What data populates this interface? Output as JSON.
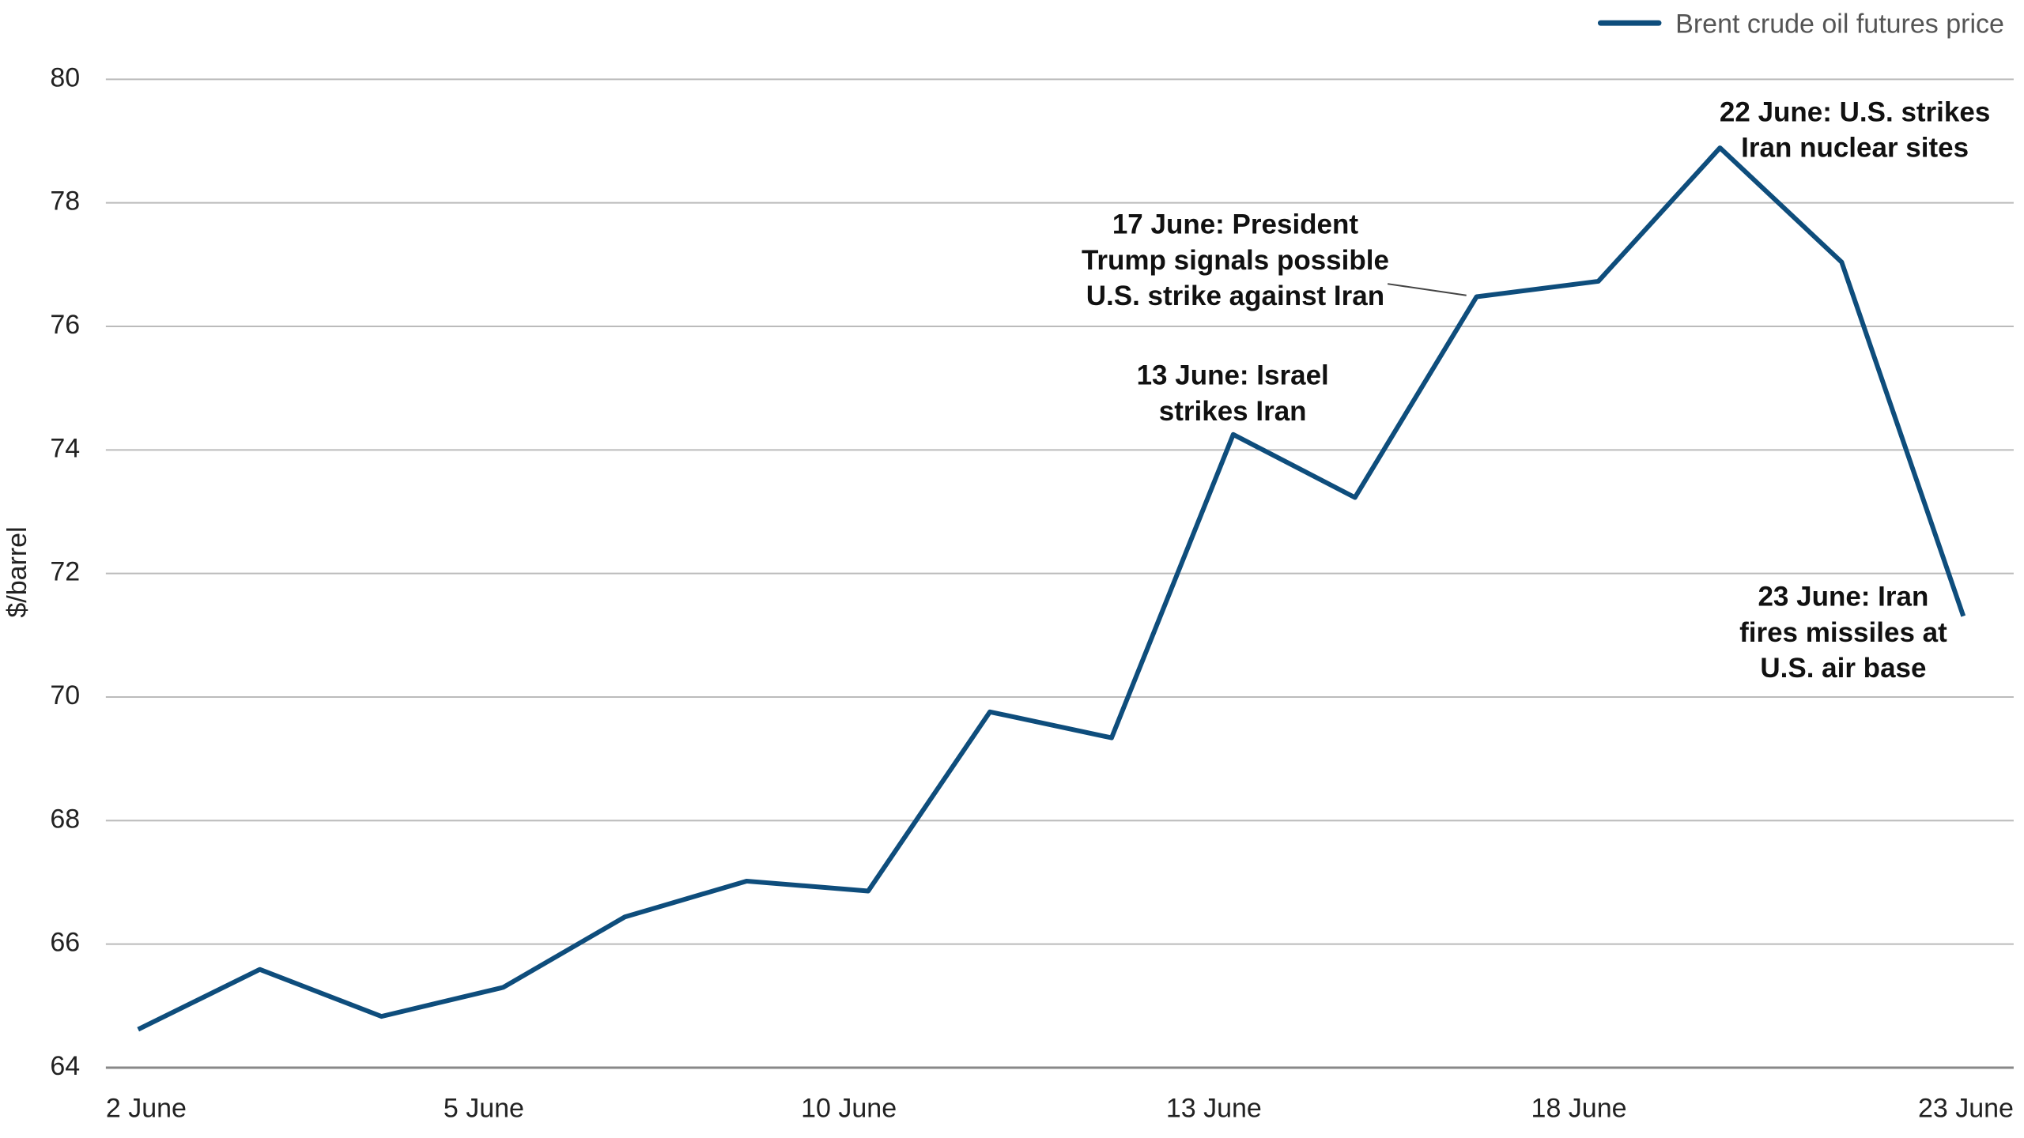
{
  "chart_data": {
    "type": "line",
    "y_axis_label": "$/barrel",
    "categories": [
      "2 June",
      null,
      null,
      "5 June",
      null,
      null,
      "10 June",
      null,
      null,
      "13 June",
      null,
      null,
      "18 June",
      null,
      null,
      "23 June"
    ],
    "series": [
      {
        "name": "Brent crude oil futures price",
        "color": "#0e4d7c",
        "values": [
          64.62,
          65.59,
          64.83,
          65.3,
          66.44,
          67.02,
          66.86,
          69.76,
          69.34,
          74.25,
          73.23,
          76.48,
          76.73,
          78.89,
          77.04,
          71.31
        ]
      }
    ],
    "ylim": [
      64,
      80
    ],
    "yticks": [
      64,
      66,
      68,
      70,
      72,
      74,
      76,
      78,
      80
    ],
    "grid": true,
    "legend": "top-right",
    "annotations": [
      {
        "lines": [
          "13 June: Israel",
          "strikes Iran"
        ]
      },
      {
        "lines": [
          "17 June: President",
          "Trump signals possible",
          "U.S. strike against Iran"
        ]
      },
      {
        "lines": [
          "22 June: U.S. strikes",
          "Iran nuclear sites"
        ]
      },
      {
        "lines": [
          "23 June: Iran",
          "fires missiles at",
          "U.S. air base"
        ]
      }
    ]
  }
}
